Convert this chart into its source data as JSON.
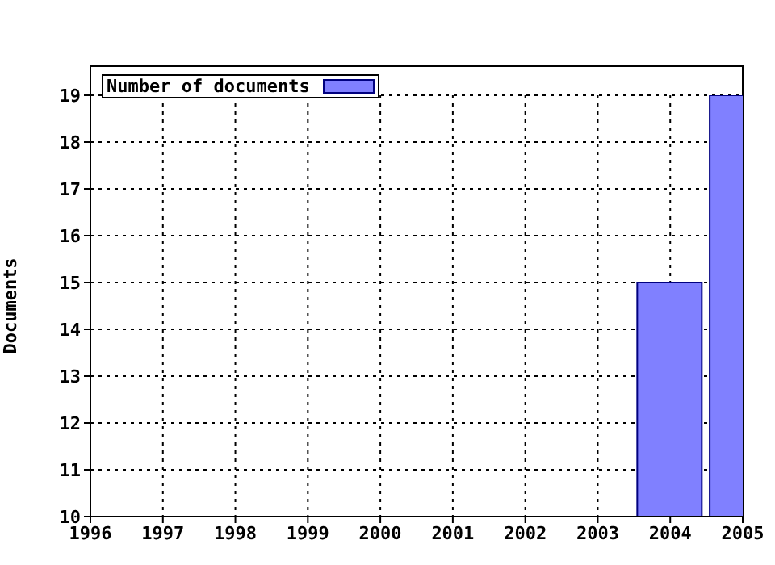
{
  "chart_data": {
    "type": "bar",
    "ylabel": "Documents",
    "x": [
      2004,
      2005
    ],
    "series": [
      {
        "name": "Number of documents",
        "color": "#8080ff",
        "values": [
          15,
          19
        ]
      }
    ],
    "xlim": [
      1996,
      2005
    ],
    "xticks": [
      1996,
      1997,
      1998,
      1999,
      2000,
      2001,
      2002,
      2003,
      2004,
      2005
    ],
    "ylim": [
      10,
      19
    ],
    "yticks": [
      10,
      11,
      12,
      13,
      14,
      15,
      16,
      17,
      18,
      19
    ],
    "grid": true,
    "legend": "top left"
  }
}
